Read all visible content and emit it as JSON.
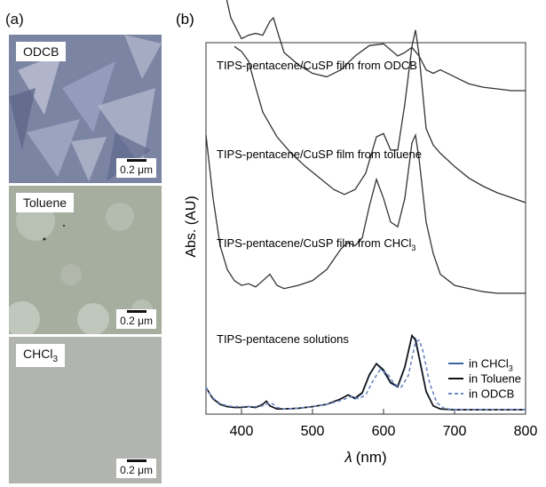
{
  "panel_a": {
    "label": "(a)",
    "images": [
      {
        "tag": "ODCB",
        "scale": "0.2 μm",
        "bg": "#7d86a6"
      },
      {
        "tag": "Toluene",
        "scale": "0.2 μm",
        "bg": "#a7afa0"
      },
      {
        "tag": "CHCl3",
        "tag_main": "CHCl",
        "tag_sub": "3",
        "scale": "0.2 μm",
        "bg": "#b2b5b0"
      }
    ]
  },
  "panel_b": {
    "label": "(b)"
  },
  "chart_data": {
    "type": "line",
    "xlabel_symbol": "λ",
    "xlabel_unit": "(nm)",
    "ylabel": "Abs. (AU)",
    "xlim": [
      350,
      800
    ],
    "xticks": [
      "400",
      "500",
      "600",
      "700",
      "800"
    ],
    "annotations": [
      {
        "text": "TIPS-pentacene/CuSP film from ODCB"
      },
      {
        "text": "TIPS-pentacene/CuSP film from toluene"
      },
      {
        "text": "TIPS-pentacene/CuSP film from CHCl",
        "sub": "3"
      },
      {
        "text": "TIPS-pentacene solutions"
      }
    ],
    "series": [
      {
        "group": "film from ODCB",
        "color": "#333333",
        "x": [
          350,
          360,
          375,
          385,
          400,
          410,
          420,
          430,
          440,
          445,
          450,
          460,
          480,
          500,
          520,
          540,
          560,
          580,
          600,
          620,
          630,
          640,
          650,
          660,
          670,
          680,
          700,
          720,
          740,
          760,
          780,
          800
        ],
        "y": [
          1.85,
          1.75,
          1.6,
          1.42,
          1.3,
          1.32,
          1.33,
          1.32,
          1.4,
          1.42,
          1.35,
          1.22,
          1.15,
          1.1,
          1.08,
          1.12,
          1.2,
          1.26,
          1.27,
          1.2,
          1.22,
          1.25,
          1.2,
          1.12,
          1.1,
          1.12,
          1.08,
          1.04,
          1.02,
          1.01,
          1.0,
          1.0
        ]
      },
      {
        "group": "film from toluene",
        "color": "#333333",
        "x": [
          390,
          400,
          410,
          420,
          430,
          450,
          470,
          490,
          510,
          530,
          545,
          560,
          575,
          590,
          600,
          610,
          620,
          630,
          640,
          645,
          650,
          660,
          670,
          680,
          700,
          720,
          740,
          760,
          780,
          800
        ],
        "y": [
          1.95,
          1.92,
          1.86,
          1.7,
          1.55,
          1.4,
          1.3,
          1.22,
          1.15,
          1.08,
          1.05,
          1.08,
          1.18,
          1.4,
          1.42,
          1.32,
          1.32,
          1.6,
          1.95,
          2.05,
          1.9,
          1.45,
          1.35,
          1.3,
          1.22,
          1.15,
          1.1,
          1.06,
          1.03,
          1.0
        ]
      },
      {
        "group": "film from CHCl3",
        "color": "#333333",
        "x": [
          350,
          360,
          370,
          380,
          390,
          400,
          410,
          420,
          430,
          440,
          450,
          460,
          480,
          500,
          520,
          540,
          550,
          560,
          570,
          580,
          590,
          600,
          610,
          620,
          630,
          640,
          645,
          650,
          660,
          670,
          680,
          700,
          720,
          740,
          760,
          780,
          800
        ],
        "y": [
          2.0,
          1.6,
          1.3,
          1.15,
          1.08,
          1.05,
          1.06,
          1.04,
          1.08,
          1.12,
          1.05,
          1.03,
          1.05,
          1.08,
          1.15,
          1.28,
          1.32,
          1.3,
          1.35,
          1.55,
          1.72,
          1.6,
          1.45,
          1.42,
          1.6,
          1.95,
          2.0,
          1.85,
          1.45,
          1.25,
          1.12,
          1.05,
          1.03,
          1.01,
          1.0,
          1.0,
          1.0
        ]
      },
      {
        "name": "in CHCl3",
        "name_main": "in CHCl",
        "name_sub": "3",
        "color": "#3b63a8",
        "dash": "",
        "x": [
          350,
          355,
          360,
          370,
          380,
          390,
          400,
          410,
          420,
          430,
          435,
          440,
          450,
          460,
          480,
          500,
          520,
          540,
          550,
          560,
          570,
          580,
          590,
          600,
          610,
          620,
          630,
          640,
          645,
          650,
          660,
          670,
          680,
          700,
          720,
          740,
          760,
          780,
          800
        ],
        "y": [
          0.3,
          0.22,
          0.15,
          0.08,
          0.05,
          0.04,
          0.04,
          0.05,
          0.04,
          0.08,
          0.12,
          0.06,
          0.02,
          0.02,
          0.03,
          0.05,
          0.08,
          0.15,
          0.2,
          0.15,
          0.22,
          0.45,
          0.6,
          0.5,
          0.35,
          0.3,
          0.55,
          0.95,
          0.92,
          0.7,
          0.25,
          0.06,
          0.02,
          0.01,
          0.01,
          0.01,
          0.01,
          0.01,
          0.01
        ]
      },
      {
        "name": "in Toluene",
        "color": "#111111",
        "dash": "",
        "x": [
          350,
          355,
          360,
          370,
          380,
          390,
          400,
          410,
          420,
          430,
          435,
          440,
          450,
          460,
          480,
          500,
          520,
          540,
          550,
          560,
          570,
          580,
          590,
          600,
          610,
          620,
          630,
          640,
          645,
          650,
          660,
          670,
          680,
          700,
          720,
          740,
          760,
          780,
          800
        ],
        "y": [
          0.3,
          0.22,
          0.15,
          0.08,
          0.05,
          0.04,
          0.04,
          0.05,
          0.04,
          0.08,
          0.12,
          0.06,
          0.02,
          0.02,
          0.03,
          0.05,
          0.08,
          0.15,
          0.2,
          0.16,
          0.23,
          0.46,
          0.6,
          0.52,
          0.36,
          0.31,
          0.56,
          0.96,
          0.9,
          0.68,
          0.24,
          0.06,
          0.02,
          0.01,
          0.01,
          0.01,
          0.01,
          0.01,
          0.01
        ]
      },
      {
        "name": "in ODCB",
        "color": "#6c86c0",
        "dash": "4,3",
        "x": [
          350,
          355,
          360,
          370,
          380,
          390,
          400,
          410,
          420,
          430,
          440,
          445,
          450,
          460,
          480,
          500,
          520,
          540,
          555,
          565,
          575,
          585,
          595,
          605,
          615,
          625,
          635,
          645,
          650,
          655,
          665,
          675,
          685,
          700,
          720,
          740,
          760,
          780,
          800
        ],
        "y": [
          0.3,
          0.22,
          0.16,
          0.09,
          0.06,
          0.05,
          0.05,
          0.05,
          0.05,
          0.06,
          0.1,
          0.08,
          0.04,
          0.02,
          0.03,
          0.05,
          0.08,
          0.13,
          0.18,
          0.15,
          0.2,
          0.38,
          0.52,
          0.48,
          0.34,
          0.3,
          0.45,
          0.88,
          0.9,
          0.78,
          0.35,
          0.1,
          0.03,
          0.01,
          0.01,
          0.01,
          0.01,
          0.01,
          0.01
        ]
      }
    ]
  }
}
